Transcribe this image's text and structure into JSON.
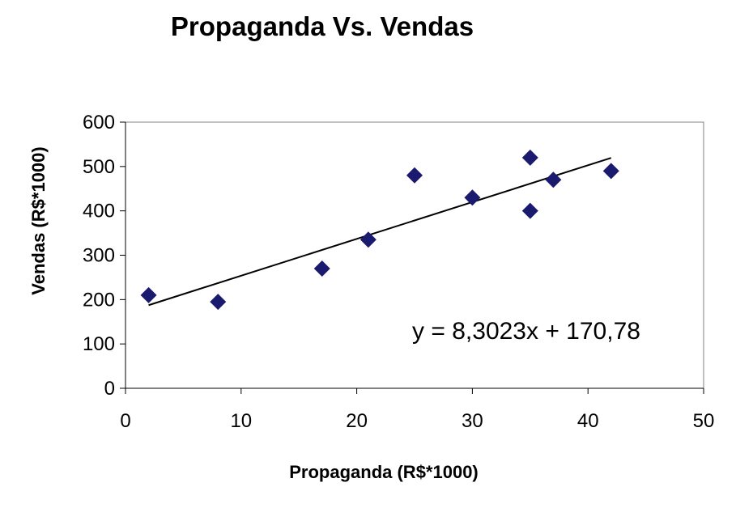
{
  "chart_data": {
    "type": "scatter",
    "title": "Propaganda Vs. Vendas",
    "xlabel": "Propaganda (R$*1000)",
    "ylabel": "Vendas (R$*1000)",
    "xlim": [
      0,
      50
    ],
    "ylim": [
      0,
      600
    ],
    "x_ticks": [
      "0",
      "10",
      "20",
      "30",
      "40",
      "50"
    ],
    "y_ticks": [
      "0",
      "100",
      "200",
      "300",
      "400",
      "500",
      "600"
    ],
    "grid": false,
    "legend": "none",
    "series": [
      {
        "points": [
          {
            "x": 2,
            "y": 210
          },
          {
            "x": 8,
            "y": 195
          },
          {
            "x": 17,
            "y": 270
          },
          {
            "x": 21,
            "y": 335
          },
          {
            "x": 25,
            "y": 480
          },
          {
            "x": 30,
            "y": 430
          },
          {
            "x": 35,
            "y": 520
          },
          {
            "x": 35,
            "y": 400
          },
          {
            "x": 37,
            "y": 470
          },
          {
            "x": 42,
            "y": 490
          }
        ],
        "color": "#1a1a6e",
        "marker": "diamond"
      }
    ],
    "trendline": {
      "type": "linear",
      "slope": 8.3023,
      "intercept": 170.78,
      "x_range": [
        2,
        42
      ],
      "color": "#000000",
      "equation": "y = 8,3023x + 170,78"
    }
  }
}
